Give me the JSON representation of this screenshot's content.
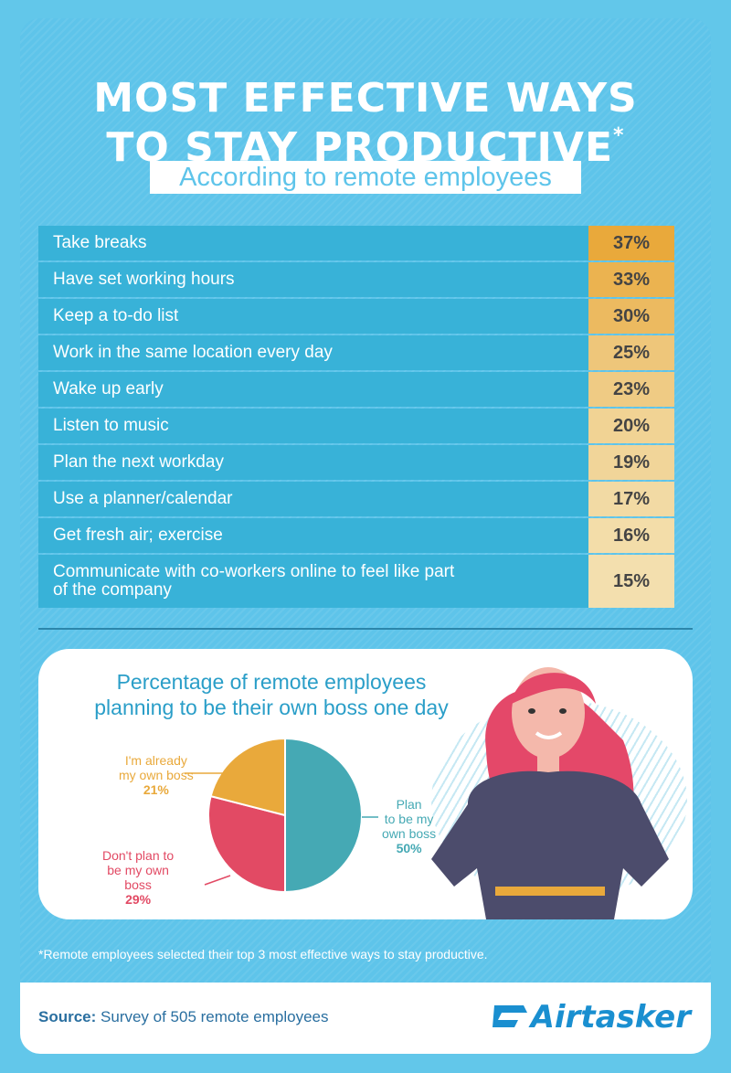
{
  "title": {
    "line1": "MOST EFFECTIVE WAYS",
    "line2": "TO STAY PRODUCTIVE",
    "asterisk": "*",
    "subtitle": "According to remote employees"
  },
  "colors": {
    "bar": "#38b2d8",
    "value_scale": [
      "#e9a93b",
      "#f3dfae"
    ]
  },
  "chart_data": [
    {
      "type": "table",
      "categories": [
        "Take breaks",
        "Have set working hours",
        "Keep a to-do list",
        "Work in the same location every day",
        "Wake up early",
        "Listen to music",
        "Plan the next workday",
        "Use a planner/calendar",
        "Get fresh air; exercise",
        "Communicate with co-workers online to feel like part of the company"
      ],
      "labels_display": [
        "Take breaks",
        "Have set working hours",
        "Keep a to-do list",
        "Work in the same location every day",
        "Wake up early",
        "Listen to music",
        "Plan the next workday",
        "Use a planner/calendar",
        "Get fresh air; exercise",
        "Communicate with co-workers online to feel like part\nof the company"
      ],
      "values": [
        37,
        33,
        30,
        25,
        23,
        20,
        19,
        17,
        16,
        15
      ],
      "value_labels": [
        "37%",
        "33%",
        "30%",
        "25%",
        "23%",
        "20%",
        "19%",
        "17%",
        "16%",
        "15%"
      ]
    },
    {
      "type": "pie",
      "title": "Percentage of remote employees planning to be their own boss one day",
      "title_lines": [
        "Percentage of remote employees",
        "planning to be their own boss one day"
      ],
      "slices": [
        {
          "label": "Plan to be my own boss",
          "label_lines": [
            "Plan",
            "to be my",
            "own boss"
          ],
          "value": 50,
          "value_label": "50%",
          "color": "#45a9b4"
        },
        {
          "label": "Don't plan to be my own boss",
          "label_lines": [
            "Don't plan to",
            "be my own",
            "boss"
          ],
          "value": 29,
          "value_label": "29%",
          "color": "#e24a64"
        },
        {
          "label": "I'm already my own boss",
          "label_lines": [
            "I'm already",
            "my own boss"
          ],
          "value": 21,
          "value_label": "21%",
          "color": "#e9a93b"
        }
      ]
    }
  ],
  "footnote": "*Remote employees selected their top 3 most effective ways to stay productive.",
  "source": {
    "prefix": "Source:",
    "text": " Survey of 505 remote employees"
  },
  "logo": {
    "text": "Airtasker",
    "icon": "airtasker-logo-icon"
  }
}
